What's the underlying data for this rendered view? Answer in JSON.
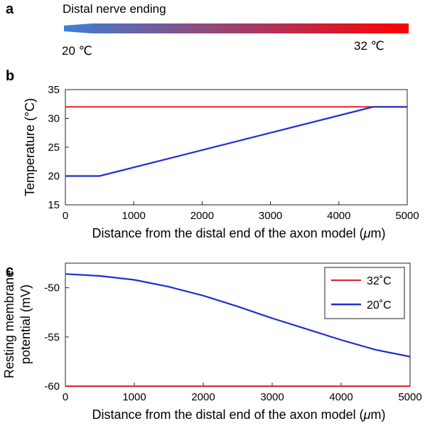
{
  "panel_a": {
    "label": "a",
    "title": "Distal nerve ending",
    "left_temp": "20 ℃",
    "right_temp": "32 ℃",
    "gradient_start_color": "#3f7fd6",
    "gradient_end_color": "#ff0000"
  },
  "chart_data": [
    {
      "panel_label": "b",
      "type": "line",
      "xlabel": "Distance from the distal end of the axon model (",
      "xlabel_mu": "μ",
      "xlabel_tail": "m)",
      "ylabel": "Temperature (°C)",
      "xlim": [
        0,
        5000
      ],
      "ylim": [
        15,
        35
      ],
      "xticks": [
        0,
        1000,
        2000,
        3000,
        4000,
        5000
      ],
      "yticks": [
        15,
        20,
        25,
        30,
        35
      ],
      "legend": null,
      "grid": false,
      "series": [
        {
          "color": "#e0202a",
          "x": [
            0,
            5000
          ],
          "y": [
            32,
            32
          ]
        },
        {
          "color": "#1f2fd0",
          "x": [
            0,
            500,
            4500,
            5000
          ],
          "y": [
            20,
            20,
            32,
            32
          ]
        }
      ]
    },
    {
      "panel_label": "c",
      "type": "line",
      "xlabel": "Distance from the distal end of the axon model (",
      "xlabel_mu": "μ",
      "xlabel_tail": "m)",
      "ylabel_line1": "Resting membrane",
      "ylabel_line2": "potential (mV)",
      "xlim": [
        0,
        5000
      ],
      "ylim": [
        -60,
        -47.5
      ],
      "xticks": [
        0,
        1000,
        2000,
        3000,
        4000,
        5000
      ],
      "yticks": [
        -60,
        -55,
        -50
      ],
      "legend": "top-right",
      "grid": false,
      "series": [
        {
          "name": "32˚C",
          "color": "#e0202a",
          "x": [
            0,
            5000
          ],
          "y": [
            -60,
            -60
          ]
        },
        {
          "name": "20˚C",
          "color": "#1f2fd0",
          "x": [
            0,
            500,
            1000,
            1500,
            2000,
            2500,
            3000,
            3500,
            4000,
            4500,
            5000
          ],
          "y": [
            -48.6,
            -48.8,
            -49.2,
            -49.9,
            -50.8,
            -51.9,
            -53.1,
            -54.2,
            -55.3,
            -56.3,
            -57.0
          ]
        }
      ]
    }
  ]
}
